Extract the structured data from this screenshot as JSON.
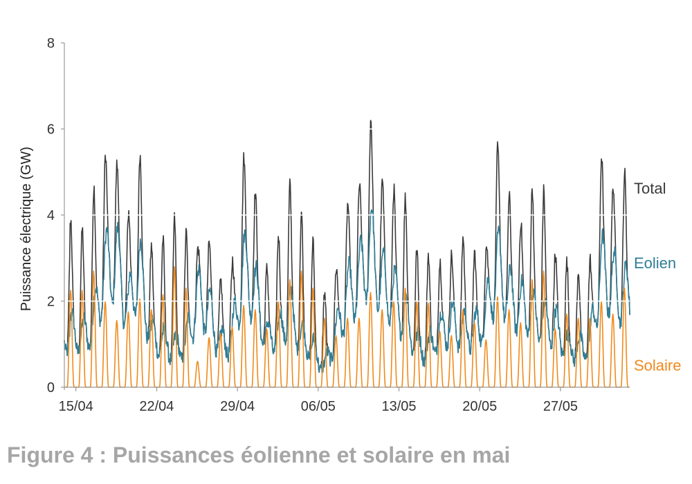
{
  "caption": "Figure 4 : Puissances éolienne et solaire en mai",
  "colors": {
    "total": "#3a3a3a",
    "eolien": "#2e7e97",
    "solaire": "#f08a1c",
    "axis": "#999999",
    "grid": "#ffffff"
  },
  "chart_data": {
    "type": "line",
    "title": "",
    "xlabel": "",
    "ylabel": "Puissance électrique (GW)",
    "ylim": [
      0,
      8
    ],
    "yticks": [
      0,
      2,
      4,
      6,
      8
    ],
    "x_range_days": [
      0,
      49
    ],
    "x_start_label": "15/04 minus 0.5 day",
    "xticks": [
      {
        "label": "15/04",
        "day": 1
      },
      {
        "label": "22/04",
        "day": 8
      },
      {
        "label": "29/04",
        "day": 15
      },
      {
        "label": "06/05",
        "day": 22
      },
      {
        "label": "13/05",
        "day": 29
      },
      {
        "label": "20/05",
        "day": 36
      },
      {
        "label": "27/05",
        "day": 43
      }
    ],
    "grid": "horizontal-white",
    "legend": "series labels at right end of lines",
    "series": [
      {
        "name": "Total",
        "daily_peaks": [
          2.7,
          2.6,
          4.25,
          4.2,
          5.95,
          3.55,
          5.4,
          2.8,
          3.2,
          2.8,
          3.5,
          3.3,
          3.4,
          1.9,
          2.3,
          4.85,
          3.75,
          2.2,
          3.0,
          3.8,
          2.8,
          3.1,
          2.0,
          3.5,
          3.7,
          4.85,
          6.25,
          5.15,
          5.2,
          4.4,
          2.5,
          2.0,
          2.9,
          3.6,
          3.3,
          2.8,
          3.6,
          5.5,
          3.95,
          4.05,
          3.9,
          3.7,
          3.6,
          2.8,
          2.85,
          2.9,
          5.0,
          4.95,
          4.9
        ],
        "end_value": 2.9
      },
      {
        "name": "Eolien",
        "daily_peaks": [
          1.8,
          1.5,
          2.0,
          3.6,
          3.95,
          2.4,
          3.7,
          1.6,
          1.4,
          1.2,
          1.3,
          2.8,
          2.4,
          1.3,
          1.5,
          3.7,
          3.0,
          1.5,
          1.6,
          2.4,
          1.5,
          1.2,
          0.6,
          1.6,
          2.8,
          3.2,
          4.35,
          3.2,
          2.8,
          2.3,
          1.3,
          1.2,
          1.7,
          2.0,
          1.8,
          1.7,
          2.2,
          3.75,
          2.8,
          2.5,
          2.3,
          2.0,
          1.9,
          1.3,
          1.2,
          1.3,
          3.6,
          3.2,
          2.85
        ],
        "end_value": 2.85
      },
      {
        "name": "Solaire",
        "daily_peaks": [
          2.25,
          2.25,
          2.7,
          2.0,
          1.55,
          1.75,
          2.05,
          1.8,
          2.15,
          2.8,
          2.3,
          0.6,
          1.15,
          1.25,
          1.4,
          1.9,
          1.8,
          1.35,
          2.0,
          2.5,
          2.7,
          2.3,
          1.6,
          1.2,
          1.6,
          1.6,
          2.2,
          1.8,
          2.0,
          2.3,
          2.0,
          1.95,
          1.3,
          1.2,
          1.8,
          1.5,
          1.1,
          2.1,
          1.8,
          1.5,
          2.5,
          2.7,
          1.35,
          1.7,
          1.6,
          1.6,
          2.0,
          1.7,
          2.3
        ],
        "end_value": 0
      }
    ]
  }
}
